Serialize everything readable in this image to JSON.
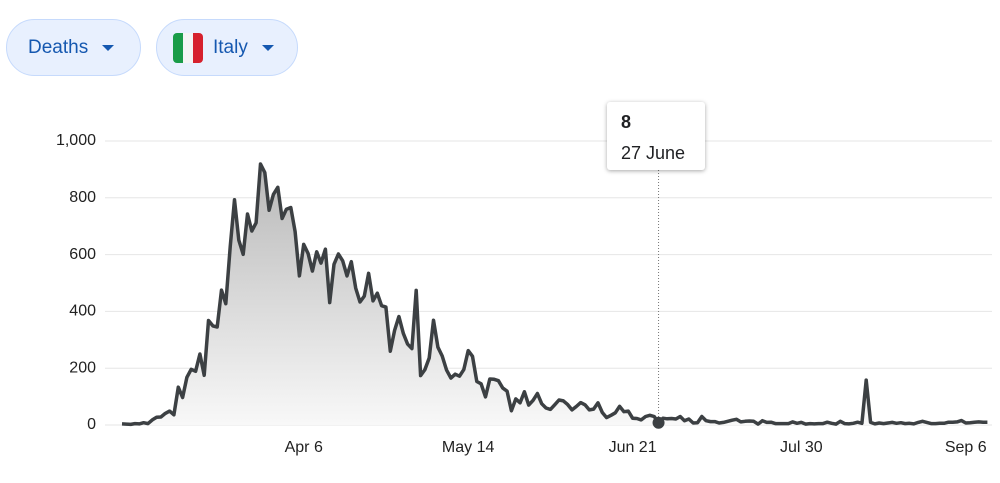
{
  "controls": {
    "metric": "Deaths",
    "country": "Italy"
  },
  "chart_data": {
    "type": "area",
    "categories": [
      "Feb 24",
      "Feb 25",
      "Feb 26",
      "Feb 27",
      "Feb 28",
      "Feb 29",
      "Mar 1",
      "Mar 2",
      "Mar 3",
      "Mar 4",
      "Mar 5",
      "Mar 6",
      "Mar 7",
      "Mar 8",
      "Mar 9",
      "Mar 10",
      "Mar 11",
      "Mar 12",
      "Mar 13",
      "Mar 14",
      "Mar 15",
      "Mar 16",
      "Mar 17",
      "Mar 18",
      "Mar 19",
      "Mar 20",
      "Mar 21",
      "Mar 22",
      "Mar 23",
      "Mar 24",
      "Mar 25",
      "Mar 26",
      "Mar 27",
      "Mar 28",
      "Mar 29",
      "Mar 30",
      "Mar 31",
      "Apr 1",
      "Apr 2",
      "Apr 3",
      "Apr 4",
      "Apr 5",
      "Apr 6",
      "Apr 7",
      "Apr 8",
      "Apr 9",
      "Apr 10",
      "Apr 11",
      "Apr 12",
      "Apr 13",
      "Apr 14",
      "Apr 15",
      "Apr 16",
      "Apr 17",
      "Apr 18",
      "Apr 19",
      "Apr 20",
      "Apr 21",
      "Apr 22",
      "Apr 23",
      "Apr 24",
      "Apr 25",
      "Apr 26",
      "Apr 27",
      "Apr 28",
      "Apr 29",
      "Apr 30",
      "May 1",
      "May 2",
      "May 3",
      "May 4",
      "May 5",
      "May 6",
      "May 7",
      "May 8",
      "May 9",
      "May 10",
      "May 11",
      "May 12",
      "May 13",
      "May 14",
      "May 15",
      "May 16",
      "May 17",
      "May 18",
      "May 19",
      "May 20",
      "May 21",
      "May 22",
      "May 23",
      "May 24",
      "May 25",
      "May 26",
      "May 27",
      "May 28",
      "May 29",
      "May 30",
      "May 31",
      "Jun 1",
      "Jun 2",
      "Jun 3",
      "Jun 4",
      "Jun 5",
      "Jun 6",
      "Jun 7",
      "Jun 8",
      "Jun 9",
      "Jun 10",
      "Jun 11",
      "Jun 12",
      "Jun 13",
      "Jun 14",
      "Jun 15",
      "Jun 16",
      "Jun 17",
      "Jun 18",
      "Jun 19",
      "Jun 20",
      "Jun 21",
      "Jun 22",
      "Jun 23",
      "Jun 24",
      "Jun 25",
      "Jun 26",
      "Jun 27",
      "Jun 28",
      "Jun 29",
      "Jun 30",
      "Jul 1",
      "Jul 2",
      "Jul 3",
      "Jul 4",
      "Jul 5",
      "Jul 6",
      "Jul 7",
      "Jul 8",
      "Jul 9",
      "Jul 10",
      "Jul 11",
      "Jul 12",
      "Jul 13",
      "Jul 14",
      "Jul 15",
      "Jul 16",
      "Jul 17",
      "Jul 18",
      "Jul 19",
      "Jul 20",
      "Jul 21",
      "Jul 22",
      "Jul 23",
      "Jul 24",
      "Jul 25",
      "Jul 26",
      "Jul 27",
      "Jul 28",
      "Jul 29",
      "Jul 30",
      "Jul 31",
      "Aug 1",
      "Aug 2",
      "Aug 3",
      "Aug 4",
      "Aug 5",
      "Aug 6",
      "Aug 7",
      "Aug 8",
      "Aug 9",
      "Aug 10",
      "Aug 11",
      "Aug 12",
      "Aug 13",
      "Aug 14",
      "Aug 15",
      "Aug 16",
      "Aug 17",
      "Aug 18",
      "Aug 19",
      "Aug 20",
      "Aug 21",
      "Aug 22",
      "Aug 23",
      "Aug 24",
      "Aug 25",
      "Aug 26",
      "Aug 27",
      "Aug 28",
      "Aug 29",
      "Aug 30",
      "Aug 31",
      "Sep 1",
      "Sep 2",
      "Sep 3",
      "Sep 4",
      "Sep 5",
      "Sep 6",
      "Sep 7",
      "Sep 8",
      "Sep 9",
      "Sep 10",
      "Sep 11"
    ],
    "values": [
      4,
      3,
      2,
      5,
      4,
      8,
      5,
      18,
      27,
      28,
      41,
      49,
      36,
      133,
      97,
      168,
      196,
      189,
      250,
      175,
      368,
      349,
      345,
      475,
      427,
      627,
      793,
      651,
      601,
      743,
      683,
      712,
      919,
      889,
      756,
      812,
      837,
      727,
      760,
      766,
      681,
      525,
      636,
      604,
      542,
      610,
      570,
      619,
      431,
      566,
      602,
      578,
      525,
      575,
      482,
      433,
      454,
      534,
      437,
      464,
      420,
      415,
      260,
      333,
      382,
      323,
      285,
      269,
      474,
      174,
      195,
      236,
      369,
      274,
      243,
      194,
      165,
      179,
      172,
      195,
      262,
      242,
      153,
      145,
      99,
      162,
      161,
      156,
      130,
      119,
      50,
      92,
      78,
      117,
      70,
      87,
      111,
      75,
      60,
      55,
      71,
      88,
      85,
      72,
      53,
      65,
      79,
      71,
      53,
      56,
      78,
      44,
      26,
      34,
      43,
      66,
      47,
      49,
      24,
      23,
      18,
      30,
      34,
      30,
      8,
      24,
      22,
      23,
      21,
      30,
      15,
      21,
      7,
      8,
      30,
      15,
      12,
      12,
      7,
      9,
      13,
      17,
      20,
      11,
      13,
      14,
      13,
      3,
      15,
      9,
      10,
      5,
      5,
      5,
      5,
      11,
      6,
      9,
      3,
      5,
      4,
      5,
      5,
      10,
      6,
      3,
      13,
      5,
      4,
      6,
      10,
      6,
      158,
      9,
      4,
      7,
      5,
      7,
      9,
      6,
      8,
      5,
      6,
      4,
      9,
      13,
      9,
      5,
      5,
      6,
      6,
      10,
      10,
      11,
      16,
      7,
      8,
      10,
      11,
      10,
      10
    ],
    "color": "#3c4043",
    "ylim": [
      0,
      1000
    ],
    "yticks": [
      0,
      200,
      400,
      600,
      800,
      {
        "value": 1000,
        "label": "1,000"
      }
    ],
    "xticks": [
      "Apr 6",
      "May 14",
      "Jun 21",
      "Jul 30",
      "Sep 6"
    ],
    "grid": true,
    "tooltip": {
      "value": 8,
      "date": "27 June"
    }
  }
}
